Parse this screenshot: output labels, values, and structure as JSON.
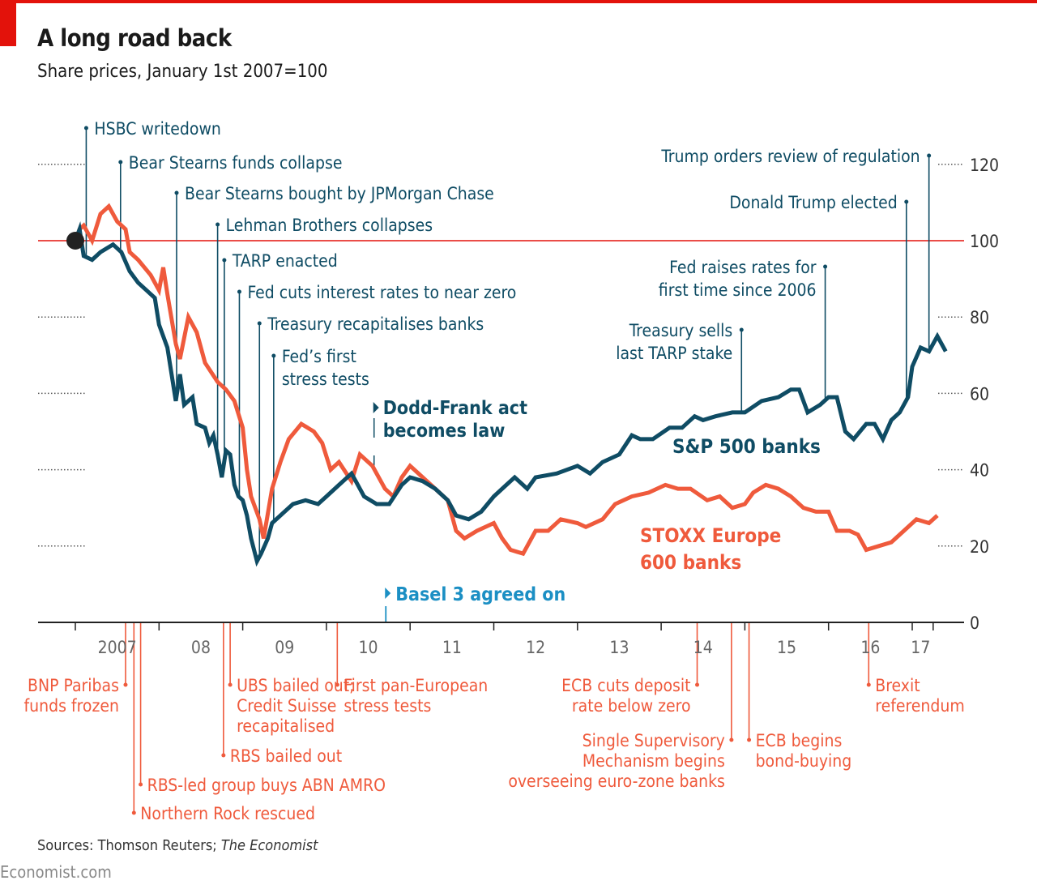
{
  "header": {
    "title": "A long road back",
    "subtitle": "Share prices, January 1st 2007=100"
  },
  "footer": {
    "source_prefix": "Sources: Thomson Reuters; ",
    "source_italic": "The Economist",
    "brand": "Economist.com"
  },
  "colors": {
    "us": "#0f4c64",
    "europe": "#ef5a3c",
    "basel": "#1b8fc4",
    "baseline": "#e3120b",
    "axis": "#333333",
    "tick_text": "#555555"
  },
  "chart_data": {
    "type": "line",
    "title": "A long road back",
    "subtitle": "Share prices, January 1st 2007=100",
    "xlabel": "",
    "ylabel": "",
    "xlim": [
      2007.0,
      2017.6
    ],
    "ylim": [
      0,
      120
    ],
    "yticks": [
      0,
      20,
      40,
      60,
      80,
      100,
      120
    ],
    "ytick_labels": [
      "0",
      "20",
      "40",
      "60",
      "80",
      "100",
      "120"
    ],
    "baseline": 100,
    "xticks": [
      {
        "label": "2007",
        "x": 2007.5
      },
      {
        "label": "08",
        "x": 2008.5
      },
      {
        "label": "09",
        "x": 2009.5
      },
      {
        "label": "10",
        "x": 2010.5
      },
      {
        "label": "11",
        "x": 2011.5
      },
      {
        "label": "12",
        "x": 2012.5
      },
      {
        "label": "13",
        "x": 2013.5
      },
      {
        "label": "14",
        "x": 2014.5
      },
      {
        "label": "15",
        "x": 2015.5
      },
      {
        "label": "16",
        "x": 2016.5
      },
      {
        "label": "17",
        "x": 2017.1
      }
    ],
    "grid": "dotted stubs at y ticks",
    "series": [
      {
        "name": "S&P 500 banks",
        "color": "#0f4c64",
        "x": [
          2007.0,
          2007.05,
          2007.1,
          2007.2,
          2007.3,
          2007.45,
          2007.55,
          2007.65,
          2007.75,
          2007.85,
          2007.95,
          2008.0,
          2008.1,
          2008.15,
          2008.2,
          2008.25,
          2008.3,
          2008.4,
          2008.45,
          2008.55,
          2008.6,
          2008.65,
          2008.7,
          2008.75,
          2008.8,
          2008.85,
          2008.9,
          2008.95,
          2009.0,
          2009.05,
          2009.1,
          2009.17,
          2009.22,
          2009.3,
          2009.35,
          2009.45,
          2009.6,
          2009.75,
          2009.9,
          2010.0,
          2010.15,
          2010.3,
          2010.35,
          2010.45,
          2010.6,
          2010.75,
          2010.9,
          2011.0,
          2011.15,
          2011.3,
          2011.45,
          2011.55,
          2011.7,
          2011.85,
          2012.0,
          2012.15,
          2012.25,
          2012.4,
          2012.5,
          2012.75,
          2013.0,
          2013.15,
          2013.3,
          2013.5,
          2013.65,
          2013.75,
          2013.9,
          2014.1,
          2014.25,
          2014.4,
          2014.5,
          2014.65,
          2014.85,
          2015.0,
          2015.2,
          2015.4,
          2015.55,
          2015.65,
          2015.75,
          2015.9,
          2016.0,
          2016.1,
          2016.2,
          2016.3,
          2016.45,
          2016.55,
          2016.65,
          2016.75,
          2016.85,
          2016.95,
          2017.0,
          2017.1,
          2017.2,
          2017.3,
          2017.4
        ],
        "values": [
          100,
          103,
          96,
          95,
          97,
          99,
          97,
          92,
          89,
          87,
          85,
          78,
          72,
          65,
          58,
          65,
          57,
          59,
          52,
          51,
          47,
          49,
          44,
          38,
          45,
          44,
          36,
          33,
          32,
          28,
          22,
          16,
          18,
          22,
          26,
          28,
          31,
          32,
          31,
          33,
          36,
          39,
          37,
          33,
          31,
          31,
          36,
          38,
          37,
          35,
          32,
          28,
          27,
          29,
          33,
          36,
          38,
          35,
          38,
          39,
          41,
          39,
          42,
          44,
          49,
          48,
          48,
          51,
          51,
          54,
          53,
          54,
          55,
          55,
          58,
          59,
          61,
          61,
          55,
          57,
          59,
          59,
          50,
          48,
          52,
          52,
          48,
          53,
          55,
          59,
          67,
          72,
          71,
          75,
          71
        ],
        "label_text": "S&P 500 banks"
      },
      {
        "name": "STOXX Europe 600 banks",
        "color": "#ef5a3c",
        "x": [
          2007.0,
          2007.05,
          2007.1,
          2007.2,
          2007.3,
          2007.4,
          2007.5,
          2007.6,
          2007.65,
          2007.75,
          2007.9,
          2008.0,
          2008.05,
          2008.1,
          2008.2,
          2008.25,
          2008.35,
          2008.45,
          2008.55,
          2008.7,
          2008.8,
          2008.9,
          2009.0,
          2009.05,
          2009.1,
          2009.2,
          2009.25,
          2009.35,
          2009.45,
          2009.55,
          2009.7,
          2009.85,
          2009.95,
          2010.05,
          2010.15,
          2010.3,
          2010.4,
          2010.55,
          2010.7,
          2010.8,
          2010.9,
          2011.0,
          2011.15,
          2011.3,
          2011.45,
          2011.55,
          2011.65,
          2011.8,
          2012.0,
          2012.1,
          2012.2,
          2012.35,
          2012.5,
          2012.65,
          2012.8,
          2013.0,
          2013.1,
          2013.3,
          2013.45,
          2013.65,
          2013.85,
          2014.05,
          2014.2,
          2014.35,
          2014.55,
          2014.7,
          2014.85,
          2015.0,
          2015.1,
          2015.25,
          2015.4,
          2015.55,
          2015.7,
          2015.85,
          2016.0,
          2016.1,
          2016.25,
          2016.35,
          2016.45,
          2016.6,
          2016.75,
          2016.9,
          2017.05,
          2017.2,
          2017.3
        ],
        "values": [
          100,
          103,
          104,
          100,
          107,
          109,
          105,
          103,
          97,
          95,
          91,
          87,
          93,
          86,
          73,
          69,
          80,
          76,
          68,
          63,
          61,
          58,
          51,
          40,
          33,
          27,
          22,
          35,
          42,
          48,
          52,
          50,
          47,
          40,
          42,
          37,
          44,
          41,
          35,
          33,
          38,
          41,
          38,
          35,
          32,
          24,
          22,
          24,
          26,
          22,
          19,
          18,
          24,
          24,
          27,
          26,
          25,
          27,
          31,
          33,
          34,
          36,
          35,
          35,
          32,
          33,
          30,
          31,
          34,
          36,
          35,
          33,
          30,
          29,
          29,
          24,
          24,
          23,
          19,
          20,
          21,
          24,
          27,
          26,
          28
        ],
        "label_text": [
          "STOXX Europe",
          "600 banks"
        ]
      }
    ],
    "annotations_us": [
      {
        "text": [
          "HSBC writedown"
        ],
        "x": 2007.13
      },
      {
        "text": [
          "Bear Stearns funds collapse"
        ],
        "x": 2007.54
      },
      {
        "text": [
          "Bear Stearns bought by JPMorgan Chase"
        ],
        "x": 2008.21
      },
      {
        "text": [
          "Lehman Brothers collapses"
        ],
        "x": 2008.7
      },
      {
        "text": [
          "TARP enacted"
        ],
        "x": 2008.78
      },
      {
        "text": [
          "Fed cuts interest rates to near zero"
        ],
        "x": 2008.96
      },
      {
        "text": [
          "Treasury recapitalises banks"
        ],
        "x": 2009.2
      },
      {
        "text": [
          "Fed’s first",
          "stress tests"
        ],
        "x": 2009.37
      },
      {
        "text": [
          "Trump orders review of regulation"
        ],
        "x": 2017.2,
        "align": "right"
      },
      {
        "text": [
          "Donald Trump elected"
        ],
        "x": 2016.93,
        "align": "right"
      },
      {
        "text": [
          "Fed raises rates for",
          "first time since 2006"
        ],
        "x": 2015.96,
        "align": "right"
      },
      {
        "text": [
          "Treasury sells",
          "last TARP stake"
        ],
        "x": 2014.96,
        "align": "right"
      }
    ],
    "annotations_us_bold": [
      {
        "text": [
          "Dodd-Frank act",
          "becomes law"
        ],
        "x": 2010.55
      }
    ],
    "annotations_basel": [
      {
        "text": [
          "Basel 3 agreed on"
        ],
        "x": 2010.71
      }
    ],
    "annotations_europe": [
      {
        "text": [
          "BNP Paribas",
          "funds frozen"
        ],
        "x": 2007.6,
        "align": "right"
      },
      {
        "text": [
          "Northern Rock rescued"
        ],
        "x": 2007.7
      },
      {
        "text": [
          "RBS-led group buys ABN AMRO"
        ],
        "x": 2007.78
      },
      {
        "text": [
          "RBS bailed out"
        ],
        "x": 2008.77
      },
      {
        "text": [
          "UBS bailed out;",
          "Credit Suisse",
          "recapitalised"
        ],
        "x": 2008.85
      },
      {
        "text": [
          "First pan-European",
          "stress tests"
        ],
        "x": 2010.13
      },
      {
        "text": [
          "ECB cuts deposit",
          "rate below zero"
        ],
        "x": 2014.43,
        "align": "right"
      },
      {
        "text": [
          "Single Supervisory",
          "Mechanism begins",
          "overseeing euro-zone banks"
        ],
        "x": 2014.84,
        "align": "right"
      },
      {
        "text": [
          "ECB begins",
          "bond-buying"
        ],
        "x": 2015.05
      },
      {
        "text": [
          "Brexit",
          "referendum"
        ],
        "x": 2016.48
      }
    ]
  }
}
